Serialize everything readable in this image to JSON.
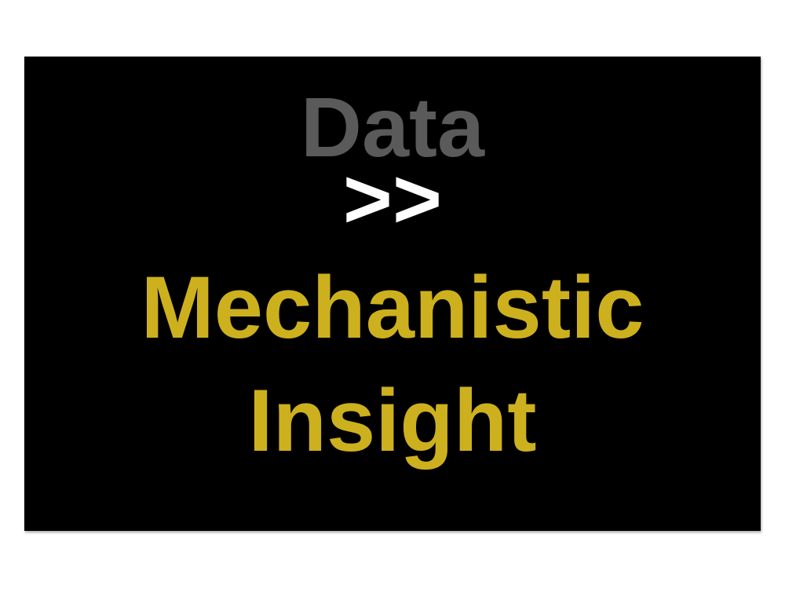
{
  "slide": {
    "line1": "Data",
    "line2": ">>",
    "line3": "Mechanistic",
    "line4": "Insight"
  },
  "colors": {
    "background": "#ffffff",
    "panel": "#000000",
    "line1": "#5a5a5a",
    "line2": "#ffffff",
    "line3": "#cdb01e",
    "line4": "#cdb01e"
  }
}
